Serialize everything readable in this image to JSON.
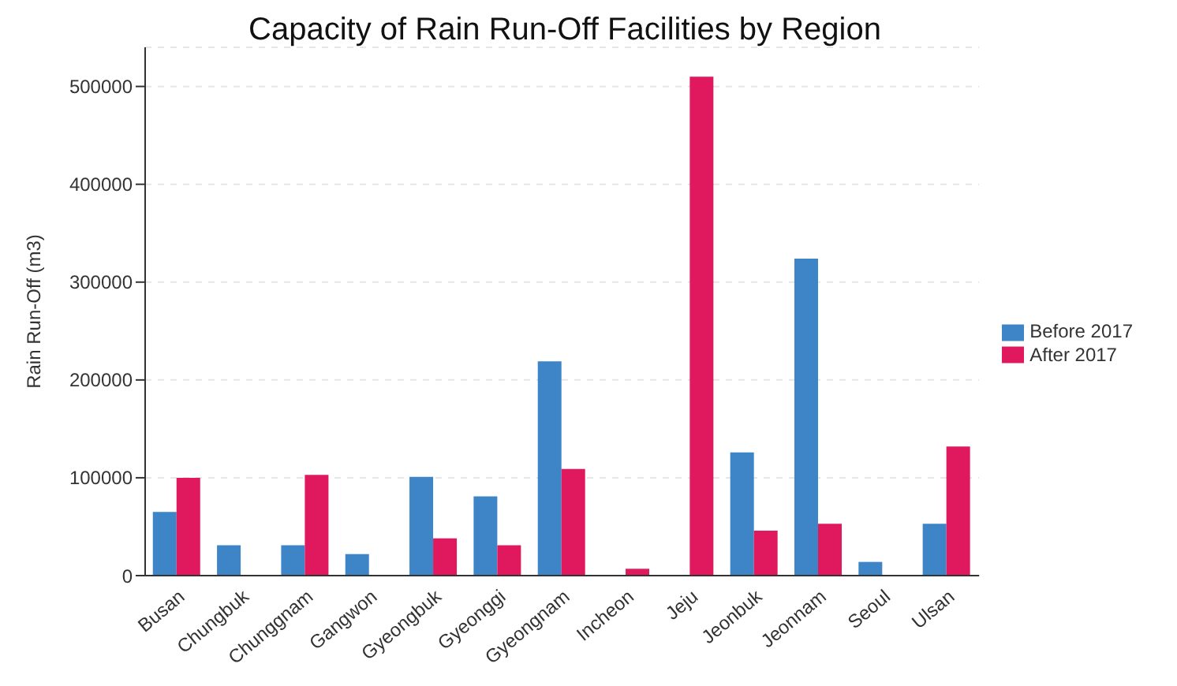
{
  "chart_data": {
    "type": "bar",
    "title": "Capacity of Rain Run-Off Facilities by Region",
    "ylabel": "Rain Run-Off (m3)",
    "categories": [
      "Busan",
      "Chungbuk",
      "Chunggnam",
      "Gangwon",
      "Gyeongbuk",
      "Gyeonggi",
      "Gyeongnam",
      "Incheon",
      "Jeju",
      "Jeonbuk",
      "Jeonnam",
      "Seoul",
      "Ulsan"
    ],
    "series": [
      {
        "name": "Before 2017",
        "color": "#3d85c6",
        "values": [
          65000,
          31000,
          31000,
          22000,
          101000,
          81000,
          219000,
          null,
          null,
          126000,
          324000,
          14000,
          53000
        ]
      },
      {
        "name": "After 2017",
        "color": "#e0195f",
        "values": [
          100000,
          null,
          103000,
          null,
          38000,
          31000,
          109000,
          7000,
          510000,
          46000,
          53000,
          null,
          132000
        ]
      }
    ],
    "ylim": [
      0,
      540000
    ],
    "yticks": [
      0,
      100000,
      200000,
      300000,
      400000,
      500000
    ],
    "grid": "y",
    "legend": "right"
  }
}
